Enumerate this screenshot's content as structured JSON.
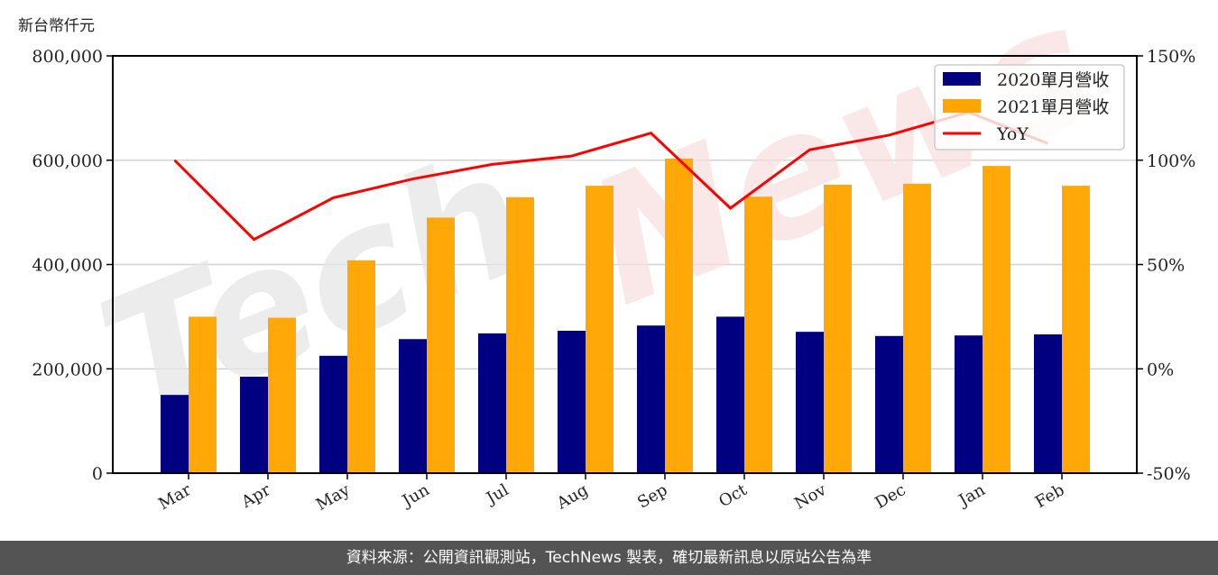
{
  "unit_label": "新台幣仟元",
  "footer": {
    "text": "資料來源：公開資訊觀測站，TechNews 製表，確切最新訊息以原站公告為準"
  },
  "watermark": {
    "text": "TechNews"
  },
  "colors": {
    "series_2020": "#000080",
    "series_2021": "#FFA500",
    "yoy": "#FF0000",
    "grid": "#d3d3d3",
    "footer_bg": "#545454"
  },
  "chart_data": {
    "type": "bar",
    "title": "",
    "xlabel": "",
    "ylabel": "新台幣仟元",
    "y2label": "",
    "categories": [
      "Mar",
      "Apr",
      "May",
      "Jun",
      "Jul",
      "Aug",
      "Sep",
      "Oct",
      "Nov",
      "Dec",
      "Jan",
      "Feb"
    ],
    "series": [
      {
        "name": "2020單月營收",
        "type": "bar",
        "axis": "left",
        "color": "#000080",
        "values": [
          150000,
          185000,
          225000,
          257000,
          268000,
          273000,
          283000,
          300000,
          271000,
          263000,
          264000,
          266000
        ]
      },
      {
        "name": "2021單月營收",
        "type": "bar",
        "axis": "left",
        "color": "#FFA500",
        "values": [
          300000,
          298000,
          408000,
          490000,
          529000,
          551000,
          603000,
          530000,
          553000,
          555000,
          589000,
          551000
        ]
      },
      {
        "name": "YoY",
        "type": "line",
        "axis": "right",
        "color": "#FF0000",
        "unit": "%",
        "values": [
          100,
          62,
          82,
          91,
          98,
          102,
          113,
          77,
          105,
          112,
          123,
          108
        ]
      }
    ],
    "ylim": [
      0,
      800000
    ],
    "yticks": [
      0,
      200000,
      400000,
      600000,
      800000
    ],
    "ytick_labels": [
      "0",
      "200,000",
      "400,000",
      "600,000",
      "800,000"
    ],
    "y2lim": [
      -50,
      150
    ],
    "y2ticks": [
      -50,
      0,
      50,
      100,
      150
    ],
    "y2tick_labels": [
      "-50%",
      "0%",
      "50%",
      "100%",
      "150%"
    ],
    "grid": "horizontal",
    "legend_position": "upper right"
  }
}
